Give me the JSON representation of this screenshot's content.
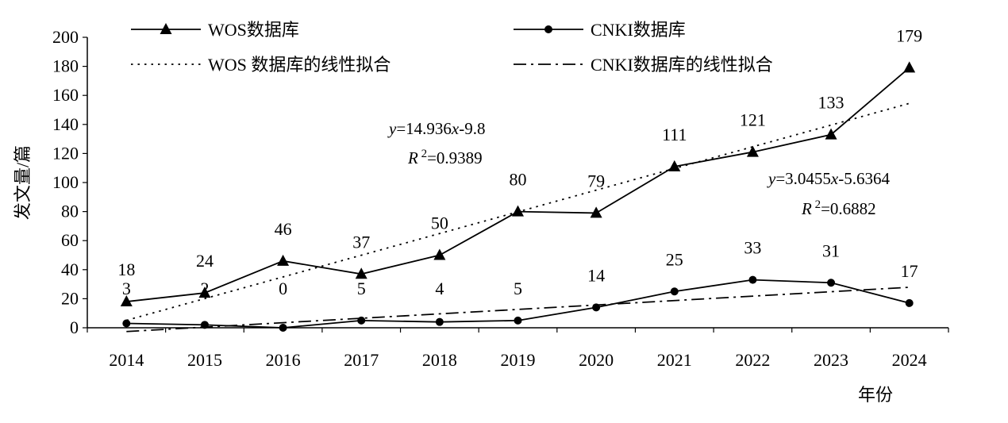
{
  "chart_data": {
    "type": "line",
    "x": [
      "2014",
      "2015",
      "2016",
      "2017",
      "2018",
      "2019",
      "2020",
      "2021",
      "2022",
      "2023",
      "2024"
    ],
    "ylim": [
      0,
      200
    ],
    "yticks": [
      0,
      20,
      40,
      60,
      80,
      100,
      120,
      140,
      160,
      180,
      200
    ],
    "xlabel": "年份",
    "ylabel": "发文量/篇",
    "grid": false,
    "legend_position": "top",
    "series": [
      {
        "name": "WOS数据库",
        "marker": "triangle",
        "line": "solid",
        "values": [
          18,
          24,
          46,
          37,
          50,
          80,
          79,
          111,
          121,
          133,
          179
        ]
      },
      {
        "name": "CNKI数据库",
        "marker": "circle",
        "line": "solid",
        "values": [
          3,
          2,
          0,
          5,
          4,
          5,
          14,
          25,
          33,
          31,
          17
        ]
      }
    ],
    "trendlines": [
      {
        "name": "WOS 数据库的线性拟合",
        "line": "dotted",
        "slope": 14.936,
        "intercept": -9.8,
        "equation": "y=14.936x-9.8",
        "equation_parts": [
          "y",
          "=14.936",
          "x",
          "-9.8"
        ],
        "r2": "R 2=0.9389",
        "r2_parts": [
          "R",
          " 2",
          "=0.9389"
        ]
      },
      {
        "name": "CNKI数据库的线性拟合",
        "line": "dash-dot",
        "slope": 3.0455,
        "intercept": -5.6364,
        "equation": "y=3.0455x-5.6364",
        "equation_parts": [
          "y",
          "=3.0455",
          "x",
          "-5.6364"
        ],
        "r2": "R 2=0.6882",
        "r2_parts": [
          "R",
          " 2",
          "=0.6882"
        ]
      }
    ]
  }
}
